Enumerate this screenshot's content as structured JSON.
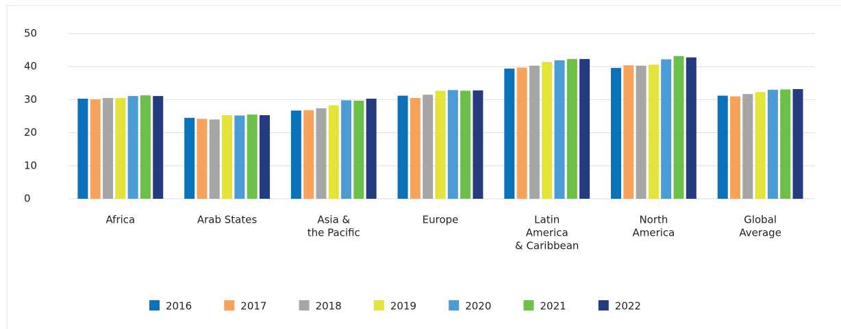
{
  "chart_data": {
    "type": "bar",
    "categories": [
      [
        "Africa"
      ],
      [
        "Arab States"
      ],
      [
        "Asia &",
        "the Pacific"
      ],
      [
        "Europe"
      ],
      [
        "Latin",
        "America",
        "& Caribbean"
      ],
      [
        "North",
        "America"
      ],
      [
        "Global",
        "Average"
      ]
    ],
    "series": [
      {
        "name": "2016",
        "color": "#0a72ba",
        "values": [
          30.3,
          24.5,
          26.7,
          31.2,
          39.4,
          39.6,
          31.2
        ]
      },
      {
        "name": "2017",
        "color": "#f7a35c",
        "values": [
          30.1,
          24.2,
          26.8,
          30.5,
          39.7,
          40.4,
          31.0
        ]
      },
      {
        "name": "2018",
        "color": "#a6a6a6",
        "values": [
          30.5,
          24.0,
          27.4,
          31.5,
          40.3,
          40.3,
          31.7
        ]
      },
      {
        "name": "2019",
        "color": "#e3e33a",
        "values": [
          30.5,
          25.3,
          28.3,
          32.7,
          41.4,
          40.6,
          32.3
        ]
      },
      {
        "name": "2020",
        "color": "#4b9bd4",
        "values": [
          31.1,
          25.2,
          29.8,
          32.9,
          41.9,
          42.2,
          33.0
        ]
      },
      {
        "name": "2021",
        "color": "#6cc04a",
        "values": [
          31.3,
          25.5,
          29.7,
          32.7,
          42.3,
          43.2,
          33.1
        ]
      },
      {
        "name": "2022",
        "color": "#253b80",
        "values": [
          31.1,
          25.3,
          30.3,
          32.8,
          42.3,
          42.8,
          33.2
        ]
      }
    ],
    "ylim": [
      0,
      50
    ],
    "yticks": [
      0,
      10,
      20,
      30,
      40,
      50
    ],
    "grid": true,
    "legend": "bottom"
  }
}
